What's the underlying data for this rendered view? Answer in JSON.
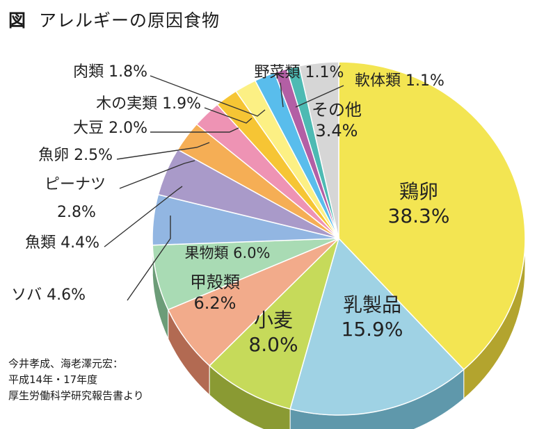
{
  "title": {
    "prefix": "図",
    "text": "アレルギーの原因食物"
  },
  "source": [
    "今井孝成、海老澤元宏：",
    "平成14年・17年度",
    "厚生労働科学研究報告書より"
  ],
  "chart_data": {
    "type": "pie",
    "title": "アレルギーの原因食物",
    "unit": "%",
    "slices": [
      {
        "label": "鶏卵",
        "value": 38.3,
        "color": "#f3e552",
        "side": "#b3a42e"
      },
      {
        "label": "乳製品",
        "value": 15.9,
        "color": "#9fd2e4",
        "side": "#5f98ab"
      },
      {
        "label": "小麦",
        "value": 8.0,
        "color": "#c6da5a",
        "side": "#8a9a33"
      },
      {
        "label": "甲殻類",
        "value": 6.2,
        "color": "#f2ab8b",
        "side": "#b26a52"
      },
      {
        "label": "果物類",
        "value": 6.0,
        "color": "#a9dbb4",
        "side": "#6c9c78"
      },
      {
        "label": "ソバ",
        "value": 4.6,
        "color": "#92b6e2",
        "side": "#5a7ea9"
      },
      {
        "label": "魚類",
        "value": 4.4,
        "color": "#a99ac9",
        "side": "#75679a"
      },
      {
        "label": "ピーナツ",
        "value": 2.8,
        "color": "#f5ae55",
        "side": "#b6782e"
      },
      {
        "label": "魚卵",
        "value": 2.5,
        "color": "#ee93b4",
        "side": "#b05f7c"
      },
      {
        "label": "大豆",
        "value": 2.0,
        "color": "#f6c534",
        "side": "#b18c1e"
      },
      {
        "label": "木の実類",
        "value": 1.9,
        "color": "#fcf084",
        "side": "#bcae4c"
      },
      {
        "label": "肉類",
        "value": 1.8,
        "color": "#59bdec",
        "side": "#3584aa"
      },
      {
        "label": "野菜類",
        "value": 1.1,
        "color": "#b35fa5",
        "side": "#7c3c71"
      },
      {
        "label": "軟体類",
        "value": 1.1,
        "color": "#4dbab3",
        "side": "#2e817c"
      },
      {
        "label": "その他",
        "value": 3.4,
        "color": "#d6d6d6",
        "side": "#9c9c9c"
      }
    ]
  }
}
